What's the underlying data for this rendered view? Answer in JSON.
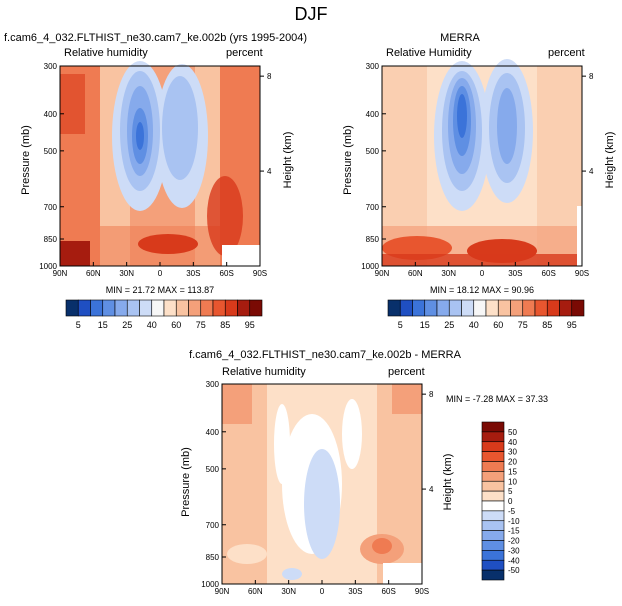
{
  "page": {
    "title": "DJF"
  },
  "panels": [
    {
      "title": "f.cam6_4_032.FLTHIST_ne30.cam7_ke.002b (yrs 1995-2004)",
      "left_label": "Relative humidity",
      "right_label": "percent",
      "ylabel": "Pressure (mb)",
      "ylabel_right": "Height (km)",
      "minmax": "MIN = 21.72 MAX = 113.87"
    },
    {
      "title": "MERRA",
      "left_label": "Relative Humidity",
      "right_label": "percent",
      "ylabel": "Pressure (mb)",
      "ylabel_right": "Height (km)",
      "minmax": "MIN = 18.12 MAX = 90.96"
    },
    {
      "title": "f.cam6_4_032.FLTHIST_ne30.cam7_ke.002b - MERRA",
      "left_label": "Relative humidity",
      "right_label": "percent",
      "ylabel": "Pressure (mb)",
      "ylabel_right": "Height (km)",
      "minmax": "MIN = -7.28 MAX = 37.33"
    }
  ],
  "chart_data": [
    {
      "type": "heatmap",
      "title": "f.cam6_4_032.FLTHIST_ne30.cam7_ke.002b (yrs 1995-2004)",
      "xlabel": "",
      "ylabel": "Pressure (mb)",
      "y2label": "Height (km)",
      "x_ticks": [
        "90N",
        "60N",
        "30N",
        "0",
        "30S",
        "60S",
        "90S"
      ],
      "y_ticks": [
        300,
        400,
        500,
        700,
        850,
        1000
      ],
      "y2_ticks": [
        8,
        4
      ],
      "y_scale": "log",
      "ylim": [
        1000,
        300
      ],
      "colorbar": {
        "levels": [
          5,
          10,
          15,
          20,
          25,
          30,
          40,
          50,
          60,
          70,
          75,
          80,
          85,
          90,
          95
        ],
        "labels": [
          "5",
          "15",
          "25",
          "40",
          "60",
          "75",
          "85",
          "95"
        ]
      },
      "min": 21.72,
      "max": 113.87
    },
    {
      "type": "heatmap",
      "title": "MERRA",
      "ylabel": "Pressure (mb)",
      "y2label": "Height (km)",
      "x_ticks": [
        "90N",
        "60N",
        "30N",
        "0",
        "30S",
        "60S",
        "90S"
      ],
      "y_ticks": [
        300,
        400,
        500,
        700,
        850,
        1000
      ],
      "y2_ticks": [
        8,
        4
      ],
      "y_scale": "log",
      "ylim": [
        1000,
        300
      ],
      "colorbar": {
        "levels": [
          5,
          10,
          15,
          20,
          25,
          30,
          40,
          50,
          60,
          70,
          75,
          80,
          85,
          90,
          95
        ],
        "labels": [
          "5",
          "15",
          "25",
          "40",
          "60",
          "75",
          "85",
          "95"
        ]
      },
      "min": 18.12,
      "max": 90.96
    },
    {
      "type": "heatmap",
      "title": "f.cam6_4_032.FLTHIST_ne30.cam7_ke.002b - MERRA",
      "ylabel": "Pressure (mb)",
      "y2label": "Height (km)",
      "x_ticks": [
        "90N",
        "60N",
        "30N",
        "0",
        "30S",
        "60S",
        "90S"
      ],
      "y_ticks": [
        300,
        400,
        500,
        700,
        850,
        1000
      ],
      "y2_ticks": [
        8,
        4
      ],
      "y_scale": "log",
      "ylim": [
        1000,
        300
      ],
      "colorbar": {
        "levels": [
          50,
          40,
          30,
          20,
          15,
          10,
          5,
          0,
          -5,
          -10,
          -15,
          -20,
          -30,
          -40,
          -50
        ],
        "labels": [
          "50",
          "40",
          "30",
          "20",
          "15",
          "10",
          "5",
          "0",
          "-5",
          "-10",
          "-15",
          "-20",
          "-30",
          "-40",
          "-50"
        ]
      },
      "min": -7.28,
      "max": 37.33
    }
  ],
  "colors": {
    "positive_scale": [
      "#08306b",
      "#1f4fc2",
      "#3b73d9",
      "#5f8fe3",
      "#86aaec",
      "#a9c3f2",
      "#cddcf7",
      "#f7f7f7",
      "#fde0c8",
      "#f9c3a1",
      "#f4a07a",
      "#ef7b52",
      "#e8562f",
      "#d83a1b",
      "#a61c0f",
      "#7a0a04"
    ],
    "diff_scale": [
      "#7a0a04",
      "#a61c0f",
      "#d83a1b",
      "#e8562f",
      "#ef7b52",
      "#f4a07a",
      "#f9c3a1",
      "#fde0c8",
      "#ffffff",
      "#cddcf7",
      "#a9c3f2",
      "#86aaec",
      "#5f8fe3",
      "#3b73d9",
      "#1f4fc2",
      "#08306b"
    ]
  }
}
